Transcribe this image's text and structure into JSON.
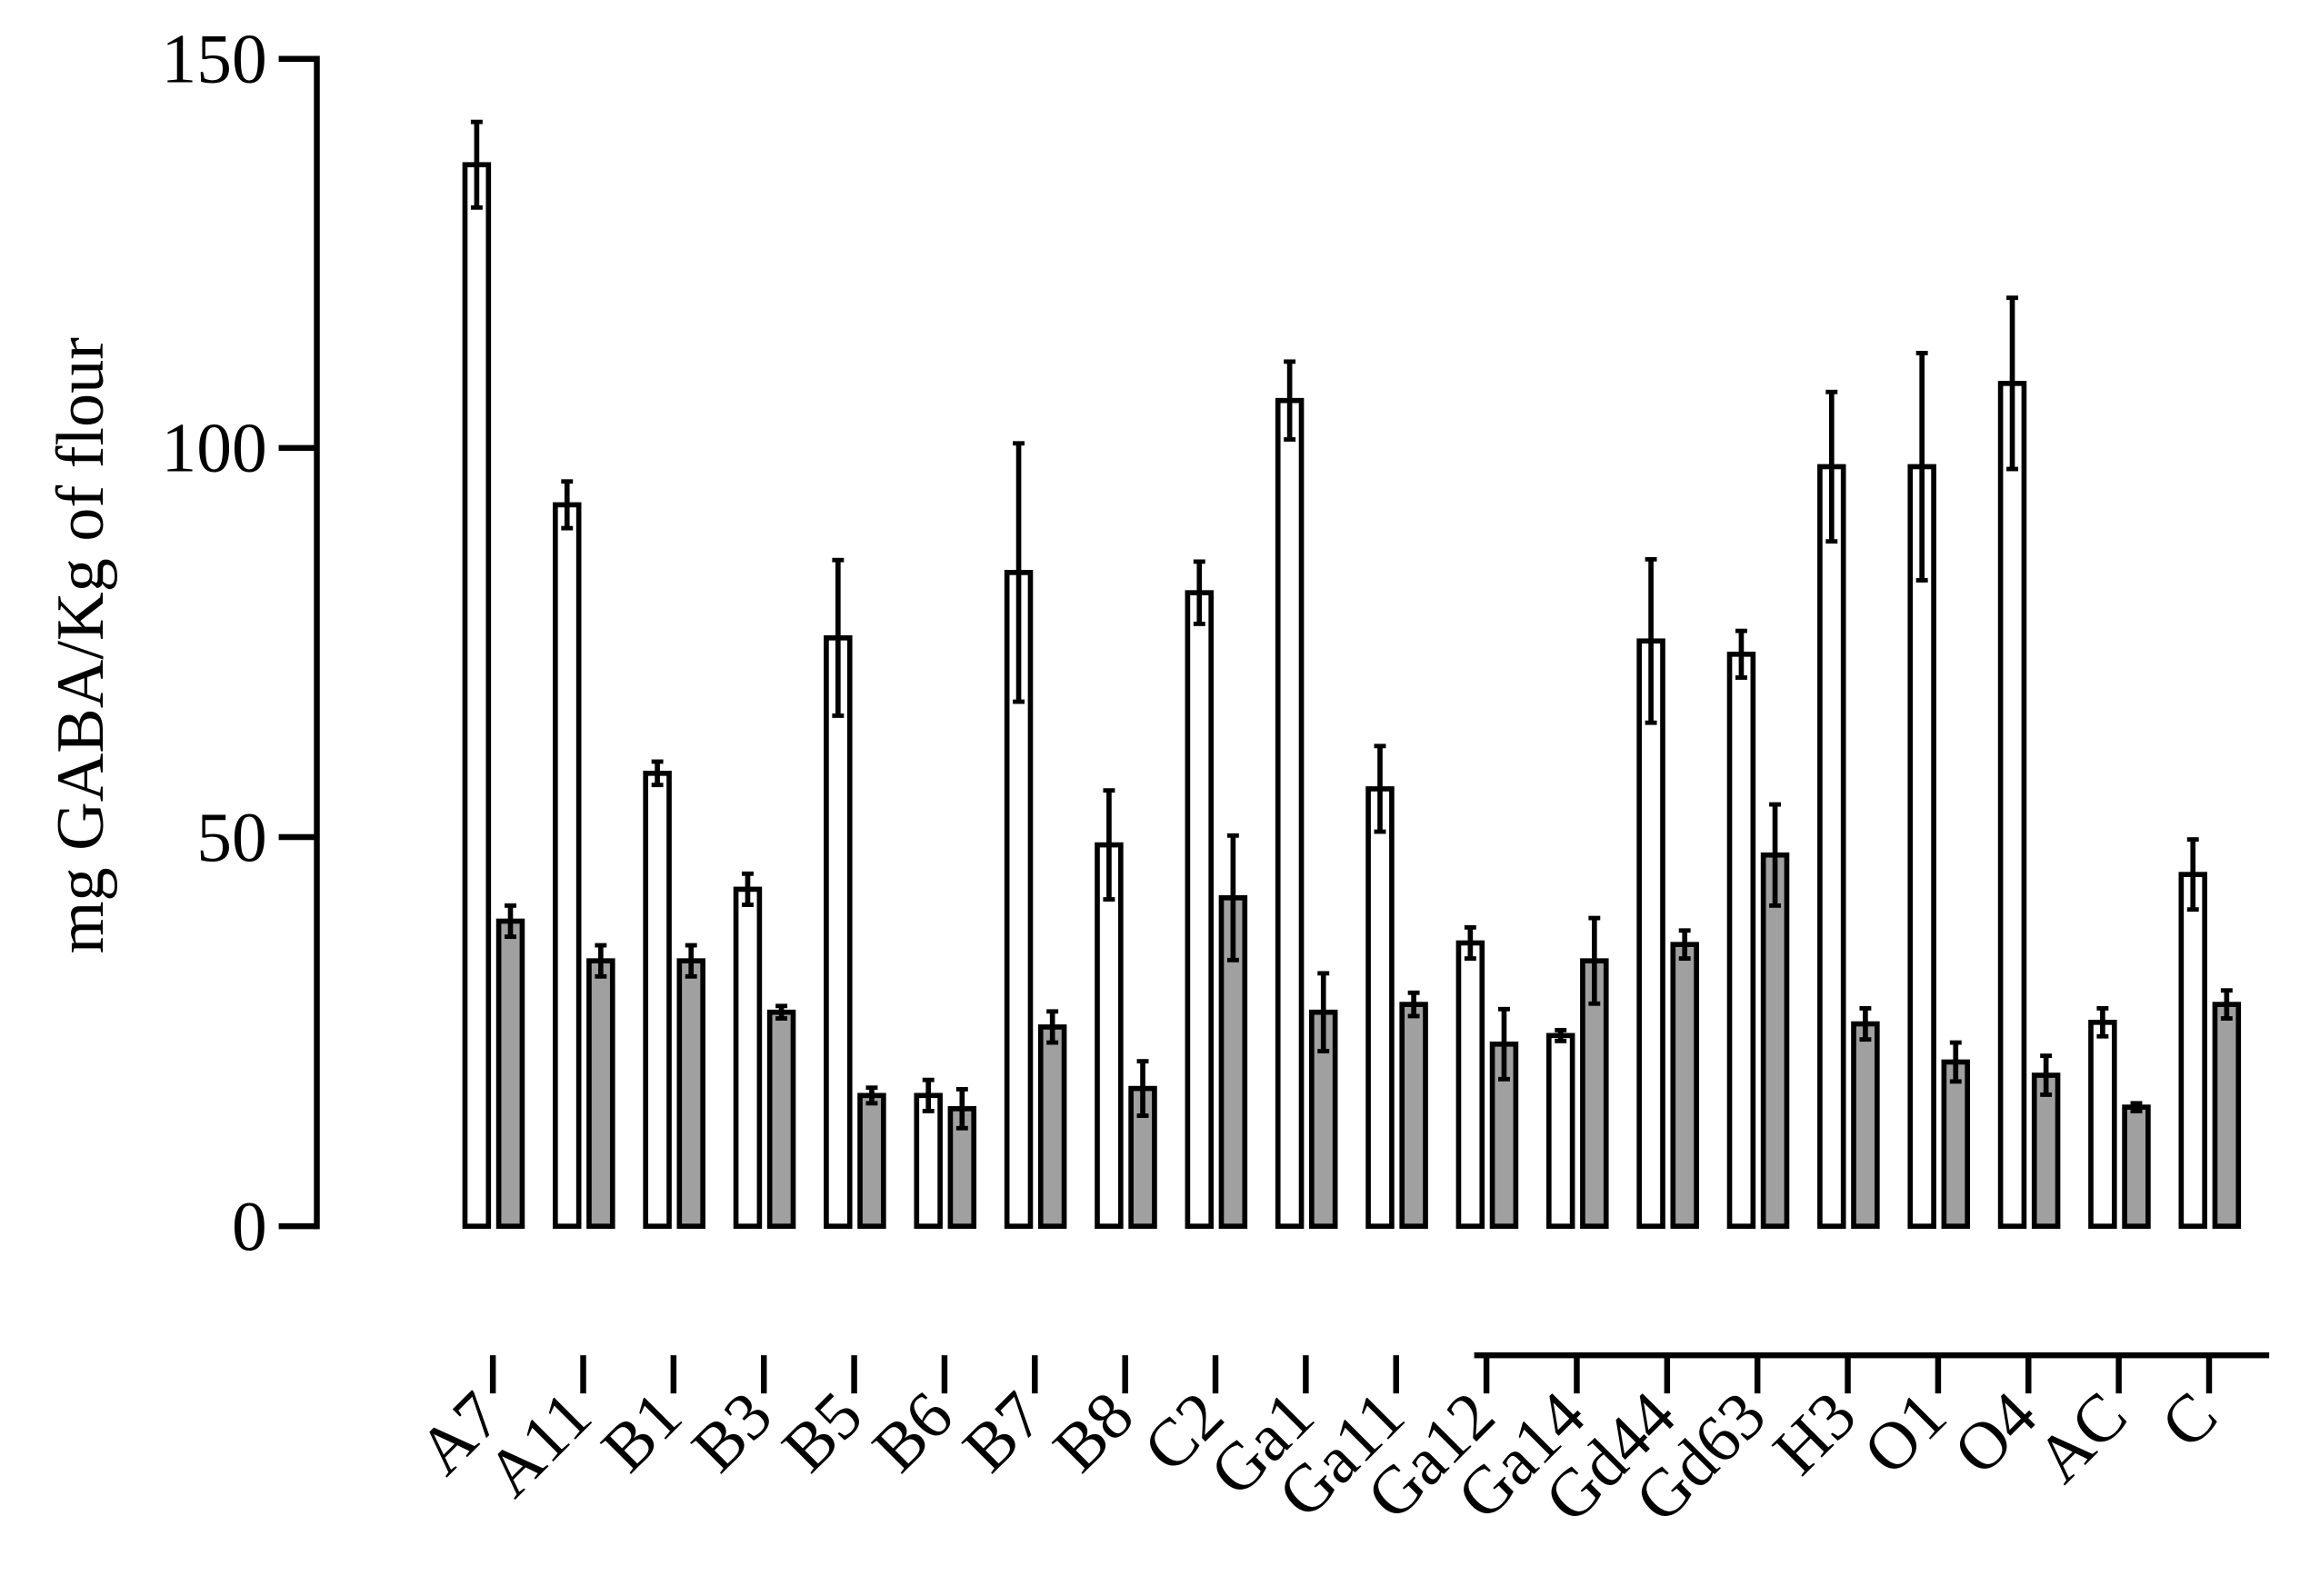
{
  "chart_data": {
    "type": "bar",
    "y_label": "mg GABA/Kg of flour",
    "categories": [
      "A7",
      "A11",
      "B1",
      "B3",
      "B5",
      "B6",
      "B7",
      "B8",
      "C2",
      "Ga1",
      "Ga11",
      "Ga12",
      "Ga14",
      "Gd44",
      "Gd63",
      "H3",
      "O1",
      "O4",
      "AC",
      "C"
    ],
    "series": [
      {
        "color": "#ffffff",
        "values": [
          136.4,
          92.7,
          58.2,
          43.3,
          75.6,
          16.8,
          84,
          49,
          81.4,
          106.1,
          56.2,
          36.4,
          24.5,
          75.2,
          73.5,
          97.6,
          97.6,
          108.3,
          26.2,
          45.2
        ],
        "errors": [
          5.5,
          3,
          1.5,
          2,
          10,
          2,
          16.6,
          7,
          4,
          5,
          5.5,
          2,
          0.7,
          10.5,
          3,
          9.6,
          14.6,
          11,
          1.8,
          4.5
        ]
      },
      {
        "color": "#a0a0a0",
        "values": [
          39.2,
          34.1,
          34.1,
          27.5,
          16.8,
          15.1,
          25.6,
          17.7,
          42.2,
          27.5,
          28.5,
          23.4,
          34.1,
          36.2,
          47.7,
          26,
          21.1,
          19.4,
          15.3,
          28.5
        ],
        "errors": [
          2,
          2,
          2,
          0.8,
          1,
          2.5,
          2,
          3.5,
          8,
          5,
          1.5,
          4.5,
          5.5,
          1.8,
          6.5,
          2,
          2.5,
          2.5,
          0.5,
          1.8
        ]
      }
    ],
    "ylim": [
      0,
      150
    ],
    "yticks": [
      0,
      50,
      100,
      150
    ]
  }
}
